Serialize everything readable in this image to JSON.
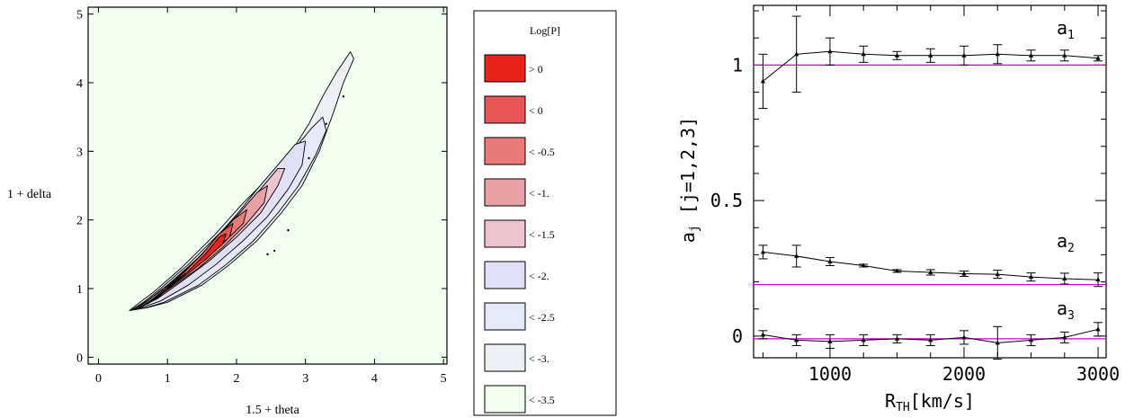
{
  "chart_data": [
    {
      "type": "contour",
      "xlabel": "1.5 + theta",
      "ylabel": "1 + delta",
      "xlim": [
        -0.15,
        5.05
      ],
      "ylim": [
        -0.1,
        5.1
      ],
      "xticks": [
        "0",
        "1",
        "2",
        "3",
        "4",
        "5"
      ],
      "yticks": [
        "0",
        "1",
        "2",
        "3",
        "4",
        "5"
      ],
      "background_color": "#f0fff0",
      "legend": {
        "title": "Log[P]",
        "placement": "right",
        "entries": [
          {
            "label": "> 0",
            "color": "#e8231c"
          },
          {
            "label": "< 0",
            "color": "#e85656"
          },
          {
            "label": "< -0.5",
            "color": "#e87a7a"
          },
          {
            "label": "< -1.",
            "color": "#e8a0a6"
          },
          {
            "label": "< -1.5",
            "color": "#ecc4d0"
          },
          {
            "label": "< -2.",
            "color": "#e2e0f6"
          },
          {
            "label": "< -2.5",
            "color": "#e6eaf8"
          },
          {
            "label": "< -3.",
            "color": "#ecf0f4"
          },
          {
            "label": "< -3.5",
            "color": "#f0fff0"
          }
        ]
      },
      "levels": [
        {
          "label": "< -3.",
          "color": "#ecf0f4",
          "points": [
            [
              0.45,
              0.68
            ],
            [
              0.6,
              0.8
            ],
            [
              0.8,
              0.95
            ],
            [
              1.2,
              1.3
            ],
            [
              1.7,
              1.8
            ],
            [
              2.1,
              2.25
            ],
            [
              2.5,
              2.65
            ],
            [
              2.8,
              3.0
            ],
            [
              3.05,
              3.4
            ],
            [
              3.25,
              3.8
            ],
            [
              3.45,
              4.15
            ],
            [
              3.65,
              4.45
            ],
            [
              3.7,
              4.35
            ],
            [
              3.55,
              4.0
            ],
            [
              3.4,
              3.55
            ],
            [
              3.2,
              3.0
            ],
            [
              2.95,
              2.5
            ],
            [
              2.65,
              2.1
            ],
            [
              2.3,
              1.7
            ],
            [
              1.9,
              1.35
            ],
            [
              1.5,
              1.05
            ],
            [
              1.0,
              0.8
            ],
            [
              0.7,
              0.72
            ]
          ]
        },
        {
          "label": "< -2.5",
          "color": "#e6eaf8",
          "points": [
            [
              0.48,
              0.69
            ],
            [
              0.65,
              0.8
            ],
            [
              0.9,
              1.0
            ],
            [
              1.3,
              1.35
            ],
            [
              1.8,
              1.85
            ],
            [
              2.2,
              2.3
            ],
            [
              2.55,
              2.7
            ],
            [
              2.85,
              3.05
            ],
            [
              3.1,
              3.35
            ],
            [
              3.25,
              3.5
            ],
            [
              3.3,
              3.3
            ],
            [
              3.15,
              2.95
            ],
            [
              2.9,
              2.5
            ],
            [
              2.6,
              2.1
            ],
            [
              2.25,
              1.7
            ],
            [
              1.85,
              1.35
            ],
            [
              1.45,
              1.05
            ],
            [
              0.95,
              0.8
            ],
            [
              0.68,
              0.72
            ]
          ]
        },
        {
          "label": "< -2.",
          "color": "#e2e0f6",
          "points": [
            [
              0.52,
              0.7
            ],
            [
              0.7,
              0.82
            ],
            [
              1.0,
              1.05
            ],
            [
              1.45,
              1.45
            ],
            [
              1.9,
              1.95
            ],
            [
              2.3,
              2.45
            ],
            [
              2.6,
              2.8
            ],
            [
              2.85,
              3.1
            ],
            [
              3.0,
              3.15
            ],
            [
              2.95,
              2.8
            ],
            [
              2.75,
              2.45
            ],
            [
              2.45,
              2.05
            ],
            [
              2.1,
              1.7
            ],
            [
              1.7,
              1.35
            ],
            [
              1.3,
              1.05
            ],
            [
              0.9,
              0.82
            ],
            [
              0.65,
              0.73
            ]
          ]
        },
        {
          "label": "< -1.5",
          "color": "#ecc4d0",
          "points": [
            [
              0.56,
              0.71
            ],
            [
              0.75,
              0.85
            ],
            [
              1.1,
              1.12
            ],
            [
              1.55,
              1.55
            ],
            [
              2.0,
              2.05
            ],
            [
              2.35,
              2.45
            ],
            [
              2.6,
              2.75
            ],
            [
              2.7,
              2.75
            ],
            [
              2.6,
              2.5
            ],
            [
              2.35,
              2.1
            ],
            [
              2.0,
              1.75
            ],
            [
              1.6,
              1.4
            ],
            [
              1.2,
              1.1
            ],
            [
              0.85,
              0.85
            ],
            [
              0.62,
              0.74
            ]
          ]
        },
        {
          "label": "< -1.",
          "color": "#e8a0a6",
          "points": [
            [
              0.6,
              0.72
            ],
            [
              0.8,
              0.86
            ],
            [
              1.15,
              1.15
            ],
            [
              1.6,
              1.6
            ],
            [
              2.0,
              2.05
            ],
            [
              2.3,
              2.4
            ],
            [
              2.45,
              2.5
            ],
            [
              2.4,
              2.25
            ],
            [
              2.15,
              1.95
            ],
            [
              1.8,
              1.6
            ],
            [
              1.45,
              1.3
            ],
            [
              1.1,
              1.05
            ],
            [
              0.8,
              0.84
            ],
            [
              0.62,
              0.74
            ]
          ]
        },
        {
          "label": "< -0.5",
          "color": "#e87a7a",
          "points": [
            [
              0.64,
              0.74
            ],
            [
              0.85,
              0.88
            ],
            [
              1.2,
              1.2
            ],
            [
              1.6,
              1.6
            ],
            [
              1.95,
              2.0
            ],
            [
              2.15,
              2.15
            ],
            [
              2.1,
              1.95
            ],
            [
              1.8,
              1.65
            ],
            [
              1.45,
              1.35
            ],
            [
              1.1,
              1.08
            ],
            [
              0.82,
              0.86
            ],
            [
              0.66,
              0.76
            ]
          ]
        },
        {
          "label": "< 0",
          "color": "#e85656",
          "points": [
            [
              0.7,
              0.77
            ],
            [
              0.9,
              0.9
            ],
            [
              1.2,
              1.2
            ],
            [
              1.5,
              1.5
            ],
            [
              1.75,
              1.8
            ],
            [
              1.95,
              1.95
            ],
            [
              1.9,
              1.75
            ],
            [
              1.6,
              1.5
            ],
            [
              1.3,
              1.25
            ],
            [
              1.0,
              1.02
            ],
            [
              0.78,
              0.84
            ]
          ]
        },
        {
          "label": "> 0",
          "color": "#e8231c",
          "points": [
            [
              0.78,
              0.82
            ],
            [
              1.0,
              0.98
            ],
            [
              1.3,
              1.25
            ],
            [
              1.55,
              1.5
            ],
            [
              1.75,
              1.75
            ],
            [
              1.85,
              1.8
            ],
            [
              1.8,
              1.65
            ],
            [
              1.55,
              1.42
            ],
            [
              1.25,
              1.18
            ],
            [
              0.98,
              0.98
            ],
            [
              0.82,
              0.86
            ]
          ]
        }
      ],
      "isolated_points": [
        [
          2.45,
          1.5
        ],
        [
          2.55,
          1.55
        ],
        [
          2.75,
          1.85
        ],
        [
          3.05,
          2.9
        ],
        [
          3.3,
          3.4
        ],
        [
          3.55,
          3.8
        ]
      ]
    },
    {
      "type": "line",
      "xlabel_main": "R",
      "xlabel_sub": "TH",
      "xlabel_rest": "[km/s]",
      "ylabel_main": "a",
      "ylabel_sub": "j",
      "ylabel_rest": " [j=1,2,3]",
      "xlim": [
        430,
        3060
      ],
      "ylim": [
        -0.08,
        1.22
      ],
      "xticks": [
        1000,
        2000,
        3000
      ],
      "yticks": [
        0,
        0.5,
        1
      ],
      "ytick_labels": [
        "0",
        "0.5",
        "1"
      ],
      "xtick_labels": [
        "1000",
        "2000",
        "3000"
      ],
      "x": [
        500,
        750,
        1000,
        1250,
        1500,
        1750,
        2000,
        2250,
        2500,
        2750,
        3000
      ],
      "series": [
        {
          "name": "a",
          "sub": "1",
          "values": [
            0.94,
            1.04,
            1.05,
            1.04,
            1.035,
            1.035,
            1.035,
            1.04,
            1.035,
            1.035,
            1.025
          ],
          "errors": [
            0.1,
            0.14,
            0.05,
            0.03,
            0.015,
            0.025,
            0.035,
            0.035,
            0.02,
            0.02,
            0.01
          ]
        },
        {
          "name": "a",
          "sub": "2",
          "values": [
            0.31,
            0.295,
            0.275,
            0.26,
            0.24,
            0.235,
            0.23,
            0.228,
            0.218,
            0.212,
            0.208
          ],
          "errors": [
            0.025,
            0.04,
            0.015,
            0.005,
            0.005,
            0.01,
            0.01,
            0.015,
            0.015,
            0.02,
            0.025
          ]
        },
        {
          "name": "a",
          "sub": "3",
          "values": [
            0.005,
            -0.015,
            -0.02,
            -0.015,
            -0.01,
            -0.015,
            -0.005,
            -0.025,
            -0.015,
            -0.005,
            0.025
          ],
          "errors": [
            0.015,
            0.02,
            0.025,
            0.02,
            0.015,
            0.02,
            0.025,
            0.06,
            0.02,
            0.02,
            0.025
          ]
        }
      ],
      "reference_lines": [
        {
          "value": 1.0,
          "color": "#cc00cc"
        },
        {
          "value": 0.19,
          "color": "#cc00cc"
        },
        {
          "value": -0.01,
          "color": "#cc00cc"
        }
      ]
    }
  ]
}
